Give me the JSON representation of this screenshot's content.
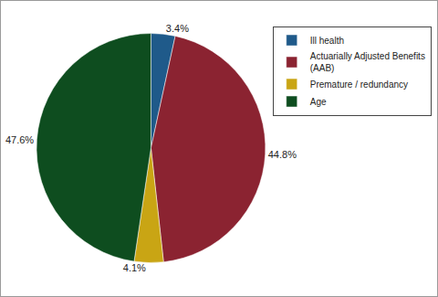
{
  "chart_data": {
    "type": "pie",
    "categories": [
      "Ill health",
      "Actuarially Adjusted Benefits (AAB)",
      "Premature / redundancy",
      "Age"
    ],
    "values": [
      3.4,
      44.8,
      4.1,
      47.6
    ],
    "value_labels": [
      "3.4%",
      "44.8%",
      "4.1%",
      "47.6%"
    ],
    "colors": [
      "#1f5a8a",
      "#8b2331",
      "#c9a514",
      "#0e4d1f"
    ],
    "data_labels": true,
    "legend": "top right"
  }
}
